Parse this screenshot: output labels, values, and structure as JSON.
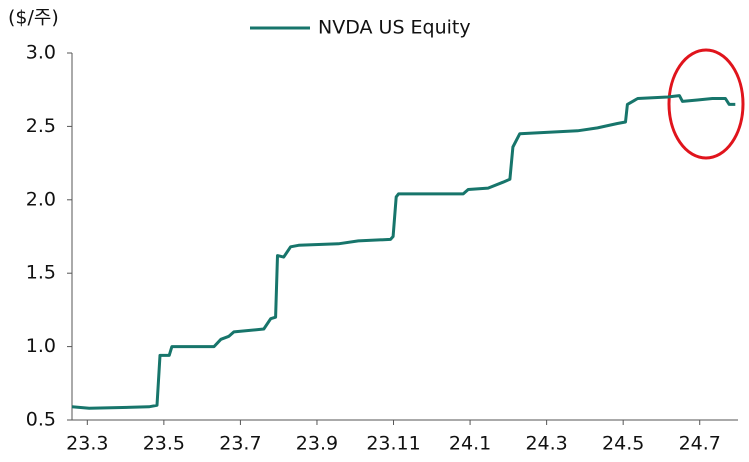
{
  "chart_data": {
    "type": "line",
    "y_label": "($/주)",
    "series": [
      {
        "name": "NVDA US Equity",
        "color": "#17756b",
        "x": [
          -0.4,
          0.05,
          1.61,
          1.82,
          1.9,
          2.14,
          2.21,
          3.31,
          3.49,
          3.7,
          3.83,
          4.61,
          4.79,
          4.92,
          4.97,
          5.13,
          5.31,
          5.52,
          6.56,
          7.08,
          7.92,
          7.99,
          8.07,
          8.13,
          9.82,
          9.95,
          10.47,
          10.86,
          11.04,
          11.12,
          11.3,
          12.81,
          13.33,
          13.85,
          14.06,
          14.11,
          14.38,
          15.16,
          15.47,
          15.55,
          15.94,
          16.33,
          16.67,
          16.77,
          16.93
        ],
        "values": [
          0.59,
          0.58,
          0.59,
          0.6,
          0.94,
          0.94,
          1.0,
          1.0,
          1.05,
          1.07,
          1.1,
          1.12,
          1.19,
          1.2,
          1.62,
          1.61,
          1.68,
          1.69,
          1.7,
          1.72,
          1.73,
          1.75,
          2.02,
          2.04,
          2.04,
          2.07,
          2.08,
          2.12,
          2.14,
          2.36,
          2.45,
          2.47,
          2.49,
          2.52,
          2.53,
          2.65,
          2.69,
          2.7,
          2.71,
          2.67,
          2.68,
          2.69,
          2.69,
          2.65,
          2.65
        ]
      }
    ],
    "xlim": [
      -0.4,
      17
    ],
    "xticks": [
      {
        "value": 0,
        "label": "23.3"
      },
      {
        "value": 2,
        "label": "23.5"
      },
      {
        "value": 4,
        "label": "23.7"
      },
      {
        "value": 6,
        "label": "23.9"
      },
      {
        "value": 8,
        "label": "23.11"
      },
      {
        "value": 10,
        "label": "24.1"
      },
      {
        "value": 12,
        "label": "24.3"
      },
      {
        "value": 14,
        "label": "24.5"
      },
      {
        "value": 16,
        "label": "24.7"
      }
    ],
    "ylim": [
      0.5,
      3
    ],
    "yticks": [
      0.5,
      {
        "value": 1,
        "label": "1.0"
      },
      1.5,
      {
        "value": 2,
        "label": "2.0"
      },
      2.5,
      {
        "value": 3,
        "label": "3.0"
      }
    ],
    "grid": false
  }
}
